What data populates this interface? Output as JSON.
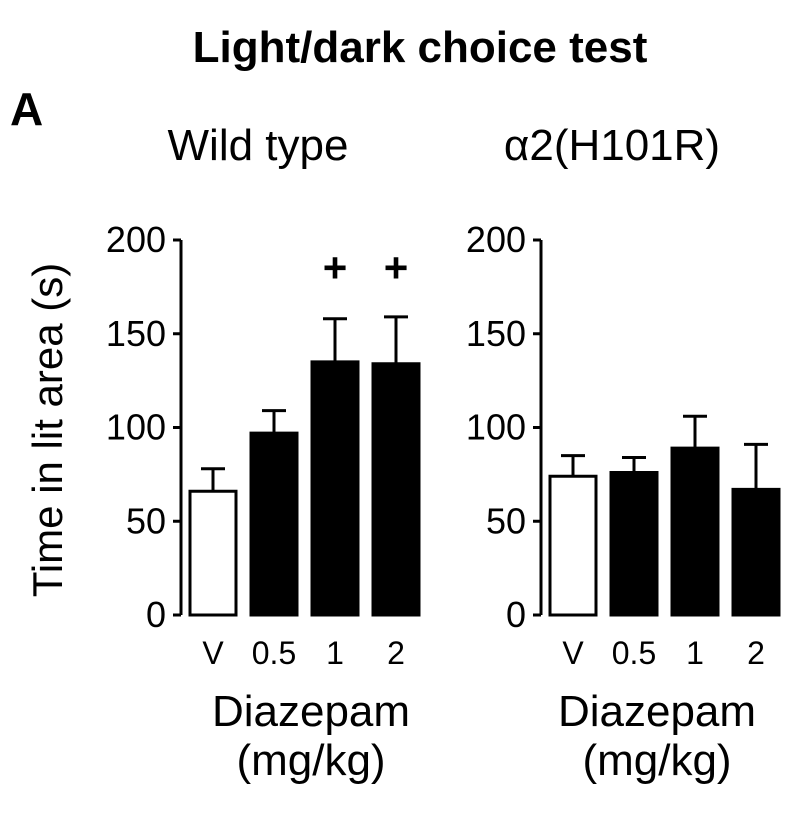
{
  "figure_title": "Light/dark choice test",
  "panel_letter": "A",
  "ylabel": "Time in lit area (s)",
  "colors": {
    "vehicle_fill": "#ffffff",
    "drug_fill": "#000000",
    "stroke": "#000000"
  },
  "chart_data": [
    {
      "type": "bar",
      "title": "Wild type",
      "categories": [
        "V",
        "0.5",
        "1",
        "2"
      ],
      "values": [
        66,
        97,
        135,
        134
      ],
      "errors": [
        12,
        12,
        23,
        25
      ],
      "significance": [
        "",
        "",
        "+",
        "+"
      ],
      "xlabel": [
        "Diazepam",
        "(mg/kg)"
      ],
      "ylabel": "Time in lit area (s)",
      "yticks": [
        "0",
        "50",
        "100",
        "150",
        "200"
      ],
      "ylim": [
        0,
        200
      ],
      "grid": false
    },
    {
      "type": "bar",
      "title": "α2(H101R)",
      "categories": [
        "V",
        "0.5",
        "1",
        "2"
      ],
      "values": [
        74,
        76,
        89,
        67
      ],
      "errors": [
        11,
        8,
        17,
        24
      ],
      "significance": [
        "",
        "",
        "",
        ""
      ],
      "xlabel": [
        "Diazepam",
        "(mg/kg)"
      ],
      "yticks": [
        "0",
        "50",
        "100",
        "150",
        "200"
      ],
      "ylim": [
        0,
        200
      ],
      "grid": false
    }
  ]
}
